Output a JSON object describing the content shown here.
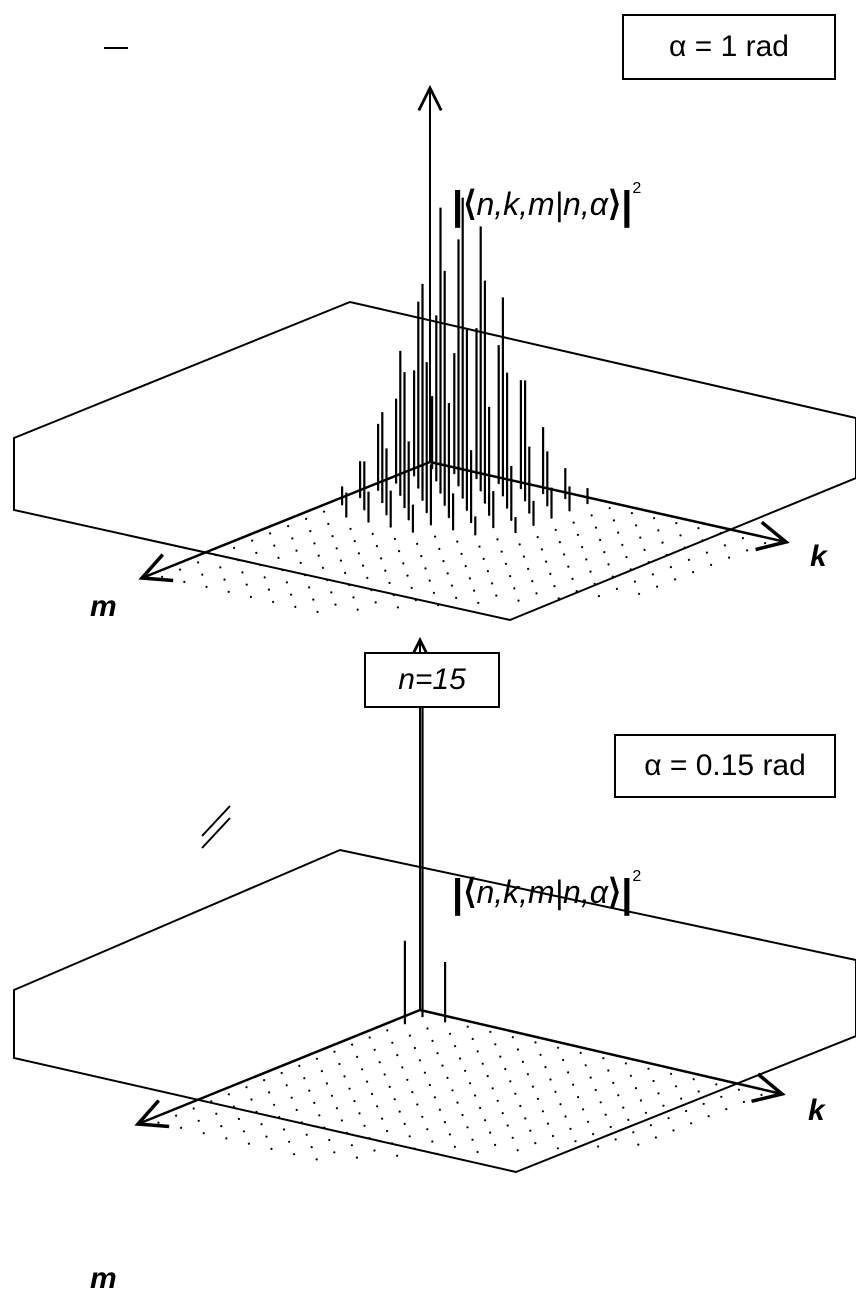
{
  "chart_data": {
    "type": "bar3d",
    "shared_label": "n=15",
    "panels": [
      {
        "title": "α = 1 rad",
        "z_label": {
          "open": "⟨",
          "text": "n,k,m|n,α",
          "close": "⟩",
          "power": "2"
        },
        "x_label": "k",
        "y_label": "m",
        "grid_shape": [
          16,
          16
        ],
        "bars_kmz": [
          [
            0,
            0,
            0.24
          ],
          [
            0,
            1,
            0.35
          ],
          [
            0,
            2,
            0.28
          ],
          [
            0,
            3,
            0.22
          ],
          [
            0,
            4,
            0.12
          ],
          [
            0,
            5,
            0.06
          ],
          [
            1,
            0,
            0.4
          ],
          [
            1,
            1,
            0.55
          ],
          [
            1,
            2,
            0.62
          ],
          [
            1,
            3,
            0.48
          ],
          [
            1,
            4,
            0.3
          ],
          [
            1,
            5,
            0.16
          ],
          [
            1,
            6,
            0.08
          ],
          [
            2,
            0,
            0.5
          ],
          [
            2,
            1,
            0.82
          ],
          [
            2,
            2,
            0.95
          ],
          [
            2,
            3,
            0.72
          ],
          [
            2,
            4,
            0.45
          ],
          [
            2,
            5,
            0.22
          ],
          [
            2,
            6,
            0.1
          ],
          [
            3,
            0,
            0.46
          ],
          [
            3,
            1,
            0.88
          ],
          [
            3,
            2,
            1.0
          ],
          [
            3,
            3,
            0.78
          ],
          [
            3,
            4,
            0.5
          ],
          [
            3,
            5,
            0.26
          ],
          [
            3,
            6,
            0.12
          ],
          [
            4,
            0,
            0.36
          ],
          [
            4,
            1,
            0.66
          ],
          [
            4,
            2,
            0.74
          ],
          [
            4,
            3,
            0.6
          ],
          [
            4,
            4,
            0.38
          ],
          [
            4,
            5,
            0.2
          ],
          [
            4,
            6,
            0.09
          ],
          [
            5,
            0,
            0.22
          ],
          [
            5,
            1,
            0.4
          ],
          [
            5,
            2,
            0.45
          ],
          [
            5,
            3,
            0.36
          ],
          [
            5,
            4,
            0.24
          ],
          [
            5,
            5,
            0.12
          ],
          [
            6,
            0,
            0.1
          ],
          [
            6,
            1,
            0.18
          ],
          [
            6,
            2,
            0.22
          ],
          [
            6,
            3,
            0.18
          ],
          [
            6,
            4,
            0.12
          ],
          [
            6,
            5,
            0.06
          ],
          [
            7,
            0,
            0.05
          ],
          [
            7,
            1,
            0.08
          ],
          [
            7,
            2,
            0.1
          ],
          [
            7,
            3,
            0.08
          ],
          [
            7,
            4,
            0.05
          ]
        ]
      },
      {
        "title": "α = 0.15 rad",
        "z_label": {
          "open": "⟨",
          "text": "n,k,m|n,α",
          "close": "⟩",
          "power": "2"
        },
        "x_label": "k",
        "y_label": "m",
        "grid_shape": [
          16,
          16
        ],
        "bars_kmz": [
          [
            0,
            0,
            1.0
          ],
          [
            0,
            1,
            0.25
          ],
          [
            1,
            0,
            0.18
          ]
        ],
        "broken_bar": true
      }
    ]
  }
}
